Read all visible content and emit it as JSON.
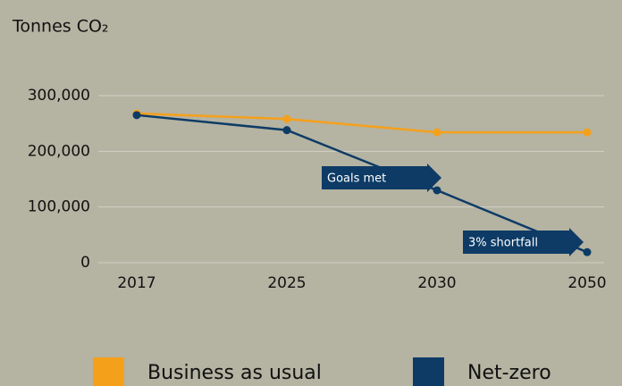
{
  "chart_data": {
    "type": "line",
    "y_label": "Tonnes CO₂",
    "categories": [
      "2017",
      "2025",
      "2030",
      "2050"
    ],
    "series": [
      {
        "name": "Business as usual",
        "color": "#f5a01a",
        "values": [
          268000,
          258000,
          234000,
          234000
        ]
      },
      {
        "name": "Net-zero",
        "color": "#0d3b66",
        "values": [
          265000,
          238000,
          130000,
          19000
        ]
      }
    ],
    "ylim": [
      0,
      300000
    ],
    "yticks": [
      0,
      {
        "value": 100000,
        "label": "100,000"
      },
      {
        "value": 200000,
        "label": "200,000"
      },
      {
        "value": 300000,
        "label": "300,000"
      }
    ],
    "grid": true,
    "annotations": [
      {
        "text": "Goals met"
      },
      {
        "text": "3% shortfall"
      }
    ],
    "legend": "bottom"
  }
}
